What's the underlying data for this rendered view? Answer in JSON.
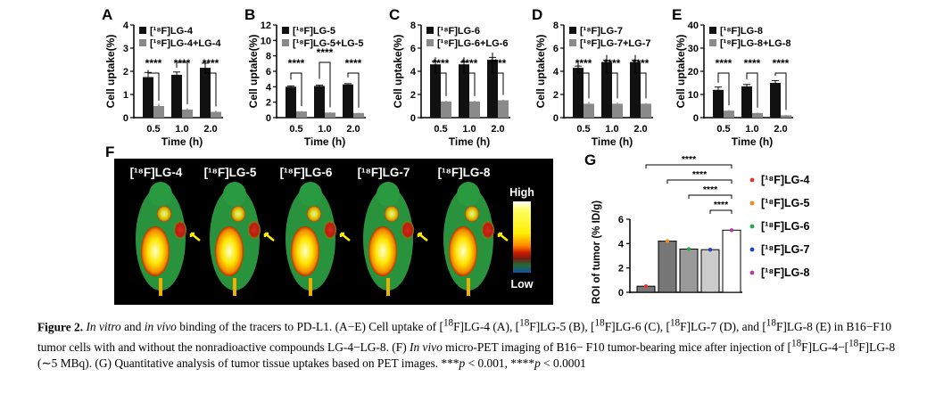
{
  "bar_panels": [
    {
      "letter": "A",
      "ylabel": "Cell uptake(%)",
      "ylim": [
        0,
        4
      ],
      "yticks": [
        "0",
        "1",
        "2",
        "3",
        "4"
      ],
      "legend": [
        "[¹⁸F]LG-4",
        "[¹⁸F]LG-4+LG-4"
      ],
      "sig": "****",
      "xticks": [
        "0.5",
        "1.0",
        "2.0"
      ],
      "xlabel": "Time (h)"
    },
    {
      "letter": "B",
      "ylabel": "Cell uptake(%)",
      "ylim": [
        0,
        12
      ],
      "yticks": [
        "0",
        "2",
        "4",
        "6",
        "8",
        "10",
        "12"
      ],
      "legend": [
        "[¹⁸F]LG-5",
        "[¹⁸F]LG-5+LG-5"
      ],
      "sig": "****",
      "xticks": [
        "0.5",
        "1.0",
        "2.0"
      ],
      "xlabel": "Time (h)"
    },
    {
      "letter": "C",
      "ylabel": "Cell uptake(%)",
      "ylim": [
        0,
        8
      ],
      "yticks": [
        "0",
        "2",
        "4",
        "6",
        "8"
      ],
      "legend": [
        "[¹⁸F]LG-6",
        "[¹⁸F]LG-6+LG-6"
      ],
      "sig": "****",
      "xticks": [
        "0.5",
        "1.0",
        "2.0"
      ],
      "xlabel": "Time (h)"
    },
    {
      "letter": "D",
      "ylabel": "Cell uptake(%)",
      "ylim": [
        0,
        8
      ],
      "yticks": [
        "0",
        "2",
        "4",
        "6",
        "8"
      ],
      "legend": [
        "[¹⁸F]LG-7",
        "[¹⁸F]LG-7+LG-7"
      ],
      "sig": "****",
      "xticks": [
        "0.5",
        "1.0",
        "2.0"
      ],
      "xlabel": "Time (h)"
    },
    {
      "letter": "E",
      "ylabel": "Cell uptake(%)",
      "ylim": [
        0,
        40
      ],
      "yticks": [
        "0",
        "10",
        "20",
        "30",
        "40"
      ],
      "legend": [
        "[¹⁸F]LG-8",
        "[¹⁸F]LG-8+LG-8"
      ],
      "sig": "****",
      "xticks": [
        "0.5",
        "1.0",
        "2.0"
      ],
      "xlabel": "Time (h)"
    }
  ],
  "chart_data": [
    {
      "type": "bar",
      "panel": "A",
      "categories": [
        "0.5",
        "1.0",
        "2.0"
      ],
      "xlabel": "Time (h)",
      "ylabel": "Cell uptake(%)",
      "ylim": [
        0,
        4
      ],
      "series": [
        {
          "name": "[18F]LG-4",
          "values": [
            1.75,
            1.85,
            2.15
          ],
          "errors": [
            0.2,
            0.12,
            0.2
          ]
        },
        {
          "name": "[18F]LG-4+LG-4",
          "values": [
            0.5,
            0.35,
            0.25
          ],
          "errors": [
            0.1,
            0.05,
            0.05
          ]
        }
      ]
    },
    {
      "type": "bar",
      "panel": "B",
      "categories": [
        "0.5",
        "1.0",
        "2.0"
      ],
      "xlabel": "Time (h)",
      "ylabel": "Cell uptake(%)",
      "ylim": [
        0,
        12
      ],
      "series": [
        {
          "name": "[18F]LG-5",
          "values": [
            4.0,
            4.1,
            4.3
          ],
          "errors": [
            0.1,
            0.1,
            0.1
          ]
        },
        {
          "name": "[18F]LG-5+LG-5",
          "values": [
            0.8,
            0.65,
            0.6
          ],
          "errors": [
            0.05,
            0.05,
            0.05
          ]
        }
      ]
    },
    {
      "type": "bar",
      "panel": "C",
      "categories": [
        "0.5",
        "1.0",
        "2.0"
      ],
      "xlabel": "Time (h)",
      "ylabel": "Cell uptake(%)",
      "ylim": [
        0,
        8
      ],
      "series": [
        {
          "name": "[18F]LG-6",
          "values": [
            4.6,
            4.6,
            5.0
          ],
          "errors": [
            0.25,
            0.2,
            0.2
          ]
        },
        {
          "name": "[18F]LG-6+LG-6",
          "values": [
            1.4,
            1.4,
            1.5
          ],
          "errors": [
            0.05,
            0.05,
            0.05
          ]
        }
      ]
    },
    {
      "type": "bar",
      "panel": "D",
      "categories": [
        "0.5",
        "1.0",
        "2.0"
      ],
      "xlabel": "Time (h)",
      "ylabel": "Cell uptake(%)",
      "ylim": [
        0,
        8
      ],
      "series": [
        {
          "name": "[18F]LG-7",
          "values": [
            4.3,
            4.8,
            4.8
          ],
          "errors": [
            0.15,
            0.15,
            0.15
          ]
        },
        {
          "name": "[18F]LG-7+LG-7",
          "values": [
            1.2,
            1.2,
            1.2
          ],
          "errors": [
            0.15,
            0.1,
            0.05
          ]
        }
      ]
    },
    {
      "type": "bar",
      "panel": "E",
      "categories": [
        "0.5",
        "1.0",
        "2.0"
      ],
      "xlabel": "Time (h)",
      "ylabel": "Cell uptake(%)",
      "ylim": [
        0,
        40
      ],
      "series": [
        {
          "name": "[18F]LG-8",
          "values": [
            12,
            13.5,
            15
          ],
          "errors": [
            1.2,
            0.8,
            1.0
          ]
        },
        {
          "name": "[18F]LG-8+LG-8",
          "values": [
            3.0,
            2.0,
            1.0
          ],
          "errors": [
            0.3,
            0.2,
            0.2
          ]
        }
      ]
    },
    {
      "type": "bar",
      "panel": "G",
      "ylabel": "ROI of tumor (% ID/g)",
      "ylim": [
        0,
        6
      ],
      "yticks": [
        "0",
        "2",
        "4",
        "6"
      ],
      "categories": [
        "[18F]LG-4",
        "[18F]LG-5",
        "[18F]LG-6",
        "[18F]LG-7",
        "[18F]LG-8"
      ],
      "values": [
        0.5,
        4.2,
        3.55,
        3.5,
        5.1
      ],
      "dot_colors": [
        "#e8342c",
        "#f08a22",
        "#2aa84a",
        "#2540c8",
        "#b23aa8"
      ],
      "bar_colors": [
        "#777777",
        "#777777",
        "#9a9a9a",
        "#cccccc",
        "#ffffff"
      ],
      "significance": [
        "****",
        "****",
        "****",
        "****"
      ]
    }
  ],
  "pet": {
    "letter": "F",
    "labels": [
      "[¹⁸F]LG-4",
      "[¹⁸F]LG-5",
      "[¹⁸F]LG-6",
      "[¹⁸F]LG-7",
      "[¹⁸F]LG-8"
    ],
    "scale_high": "High",
    "scale_low": "Low"
  },
  "roi_panel": {
    "letter": "G",
    "ylabel": "ROI of tumor (% ID/g)",
    "legend": [
      "[¹⁸F]LG-4",
      "[¹⁸F]LG-5",
      "[¹⁸F]LG-6",
      "[¹⁸F]LG-7",
      "[¹⁸F]LG-8"
    ]
  },
  "caption": {
    "label": "Figure 2.",
    "html": "<i>In vitro</i> and <i>in vivo</i> binding of the tracers to PD-L1. (A−E) Cell uptake of [<sup>18</sup>F]LG-4 (A), [<sup>18</sup>F]LG-5 (B), [<sup>18</sup>F]LG-6 (C), [<sup>18</sup>F]LG-7 (D), and [<sup>18</sup>F]LG-8 (E) in B16−F10 tumor cells with and without the nonradioactive compounds LG-4−LG-8. (F) <i>In vivo</i> micro-PET imaging of B16− F10 tumor-bearing mice after injection of [<sup>18</sup>F]LG-4−[<sup>18</sup>F]LG-8 (∼5 MBq). (G) Quantitative analysis of tumor tissue uptakes based on PET images. ***<i>p</i> &lt; 0.001, ****<i>p</i> &lt; 0.0001"
  }
}
